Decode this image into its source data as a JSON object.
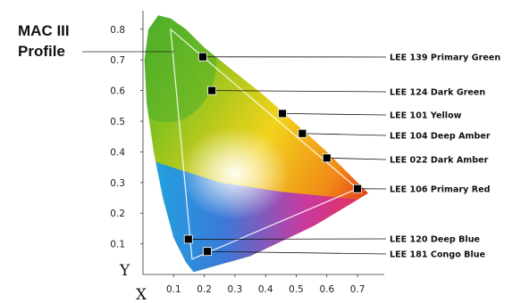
{
  "chart_data": {
    "type": "scatter",
    "title_lines": [
      "MAC III",
      "Profile"
    ],
    "xlabel": "X",
    "ylabel": "Y",
    "xlim": [
      0,
      0.75
    ],
    "ylim": [
      0,
      0.85
    ],
    "x_ticks": [
      "0.1",
      "0.2",
      "0.3",
      "0.4",
      "0.5",
      "0.6",
      "0.7"
    ],
    "y_ticks": [
      "0.1",
      "0.2",
      "0.3",
      "0.4",
      "0.5",
      "0.6",
      "0.7",
      "0.8"
    ],
    "gamut_triangle": [
      {
        "x": 0.09,
        "y": 0.8
      },
      {
        "x": 0.7,
        "y": 0.28
      },
      {
        "x": 0.16,
        "y": 0.05
      }
    ],
    "points": [
      {
        "label": "LEE 139 Primary Green",
        "x": 0.195,
        "y": 0.71
      },
      {
        "label": "LEE 124 Dark Green",
        "x": 0.225,
        "y": 0.6
      },
      {
        "label": "LEE 101 Yellow",
        "x": 0.455,
        "y": 0.525
      },
      {
        "label": "LEE 104 Deep Amber",
        "x": 0.52,
        "y": 0.46
      },
      {
        "label": "LEE 022 Dark Amber",
        "x": 0.6,
        "y": 0.38
      },
      {
        "label": "LEE 106 Primary Red",
        "x": 0.7,
        "y": 0.28
      },
      {
        "label": "LEE 120 Deep Blue",
        "x": 0.148,
        "y": 0.115
      },
      {
        "label": "LEE 181 Congo Blue",
        "x": 0.21,
        "y": 0.075
      }
    ]
  }
}
